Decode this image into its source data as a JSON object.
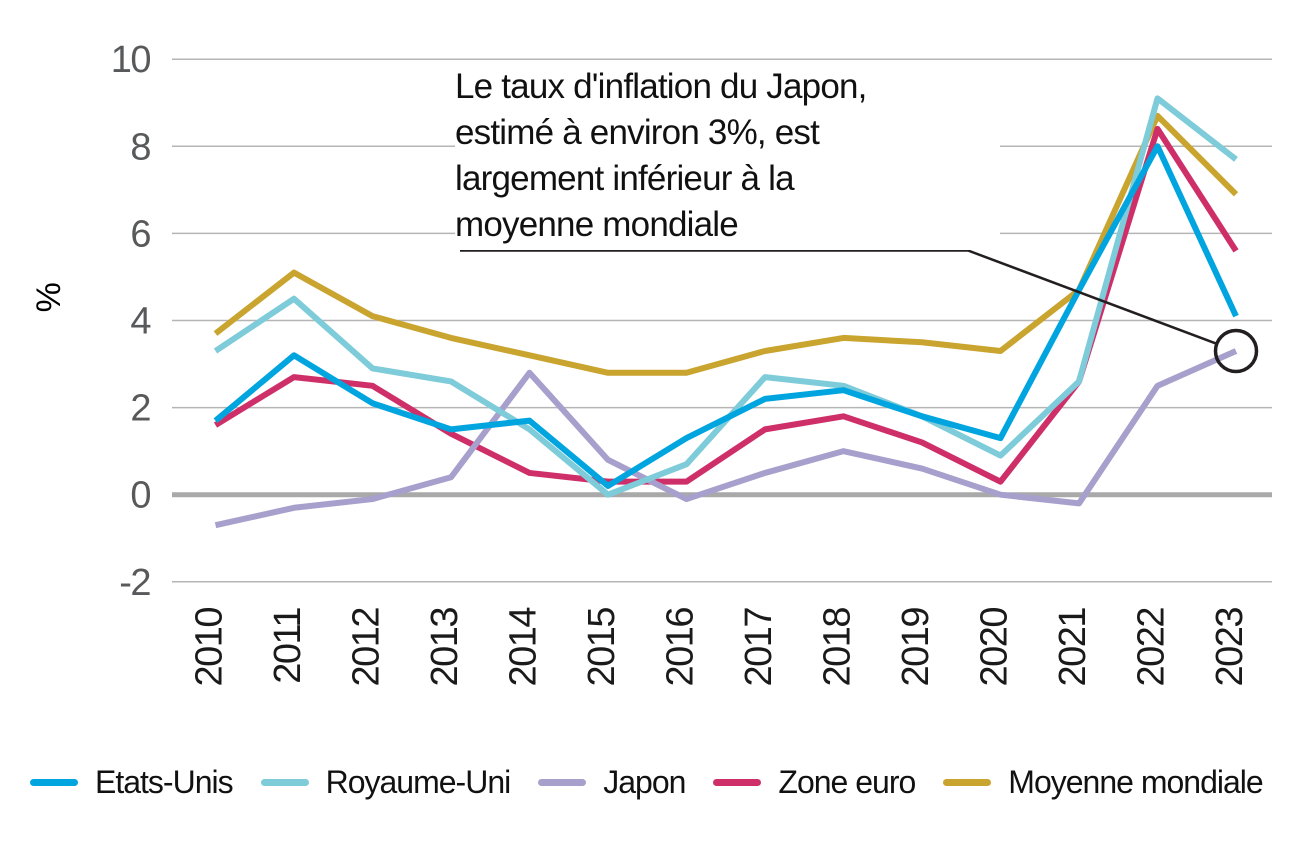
{
  "chart_data": {
    "type": "line",
    "title": "",
    "ylabel": "%",
    "xlabel": "",
    "grid": "horizontal",
    "legend_position": "bottom",
    "ylim": [
      -2.7,
      10.4
    ],
    "yticks": [
      10,
      8,
      6,
      4,
      2,
      0,
      -2
    ],
    "categories": [
      "2010",
      "2011",
      "2012",
      "2013",
      "2014",
      "2015",
      "2016",
      "2017",
      "2018",
      "2019",
      "2020",
      "2021",
      "2022",
      "2023"
    ],
    "series": [
      {
        "name": "Etats-Unis",
        "color": "#00a5df",
        "values": [
          1.7,
          3.2,
          2.1,
          1.5,
          1.7,
          0.2,
          1.3,
          2.2,
          2.4,
          1.8,
          1.3,
          4.7,
          8.0,
          4.1
        ]
      },
      {
        "name": "Royaume-Uni",
        "color": "#7ecbd9",
        "values": [
          3.3,
          4.5,
          2.9,
          2.6,
          1.5,
          0.0,
          0.7,
          2.7,
          2.5,
          1.8,
          0.9,
          2.6,
          9.1,
          7.7
        ]
      },
      {
        "name": "Japon",
        "color": "#a8a0cc",
        "values": [
          -0.7,
          -0.3,
          -0.1,
          0.4,
          2.8,
          0.8,
          -0.1,
          0.5,
          1.0,
          0.6,
          0.0,
          -0.2,
          2.5,
          3.3
        ]
      },
      {
        "name": "Zone euro",
        "color": "#ce2f68",
        "values": [
          1.6,
          2.7,
          2.5,
          1.4,
          0.5,
          0.3,
          0.3,
          1.5,
          1.8,
          1.2,
          0.3,
          2.6,
          8.4,
          5.6
        ]
      },
      {
        "name": "Moyenne mondiale",
        "color": "#c9a42f",
        "values": [
          3.7,
          5.1,
          4.1,
          3.6,
          3.2,
          2.8,
          2.8,
          3.3,
          3.6,
          3.5,
          3.3,
          4.7,
          8.7,
          6.9
        ]
      }
    ],
    "annotation": {
      "line1": "Le taux d'inflation du Japon,",
      "line2": "estimé à environ 3%, est",
      "line3": "largement inférieur à la",
      "line4": "moyenne mondiale",
      "target_series": "Japon",
      "target_x": "2023",
      "target_value": 3.3
    },
    "colors": {
      "y_tick_label": "#58595b",
      "x_tick_label": "#1a1a1a",
      "gridline": "#b5b5b5",
      "zero_line": "#a9a9a9",
      "annotation_line": "#231f20"
    }
  }
}
